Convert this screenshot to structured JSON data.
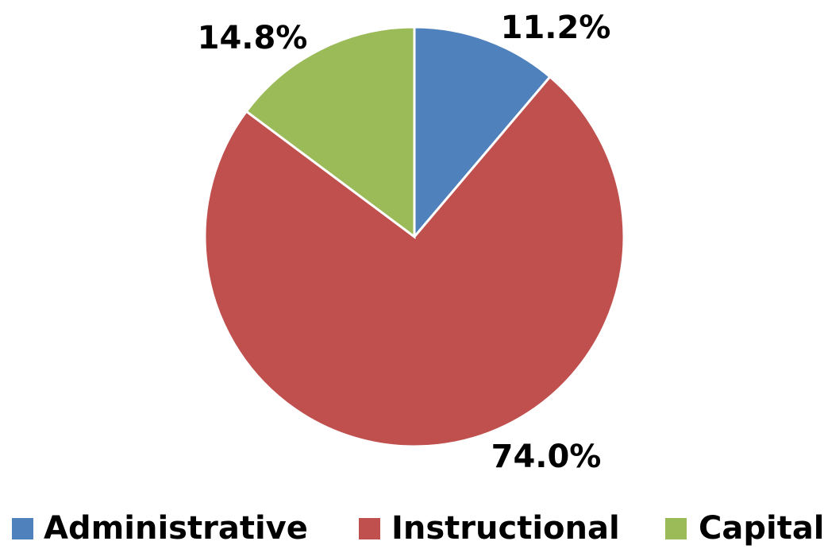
{
  "chart_data": {
    "type": "pie",
    "categories": [
      "Administrative",
      "Instructional",
      "Capital"
    ],
    "values": [
      11.2,
      74.0,
      14.8
    ],
    "value_labels": [
      "11.2%",
      "74.0%",
      "14.8%"
    ],
    "colors": [
      "#4f81bd",
      "#c0504d",
      "#9bbb59"
    ],
    "legend": "bottom"
  }
}
